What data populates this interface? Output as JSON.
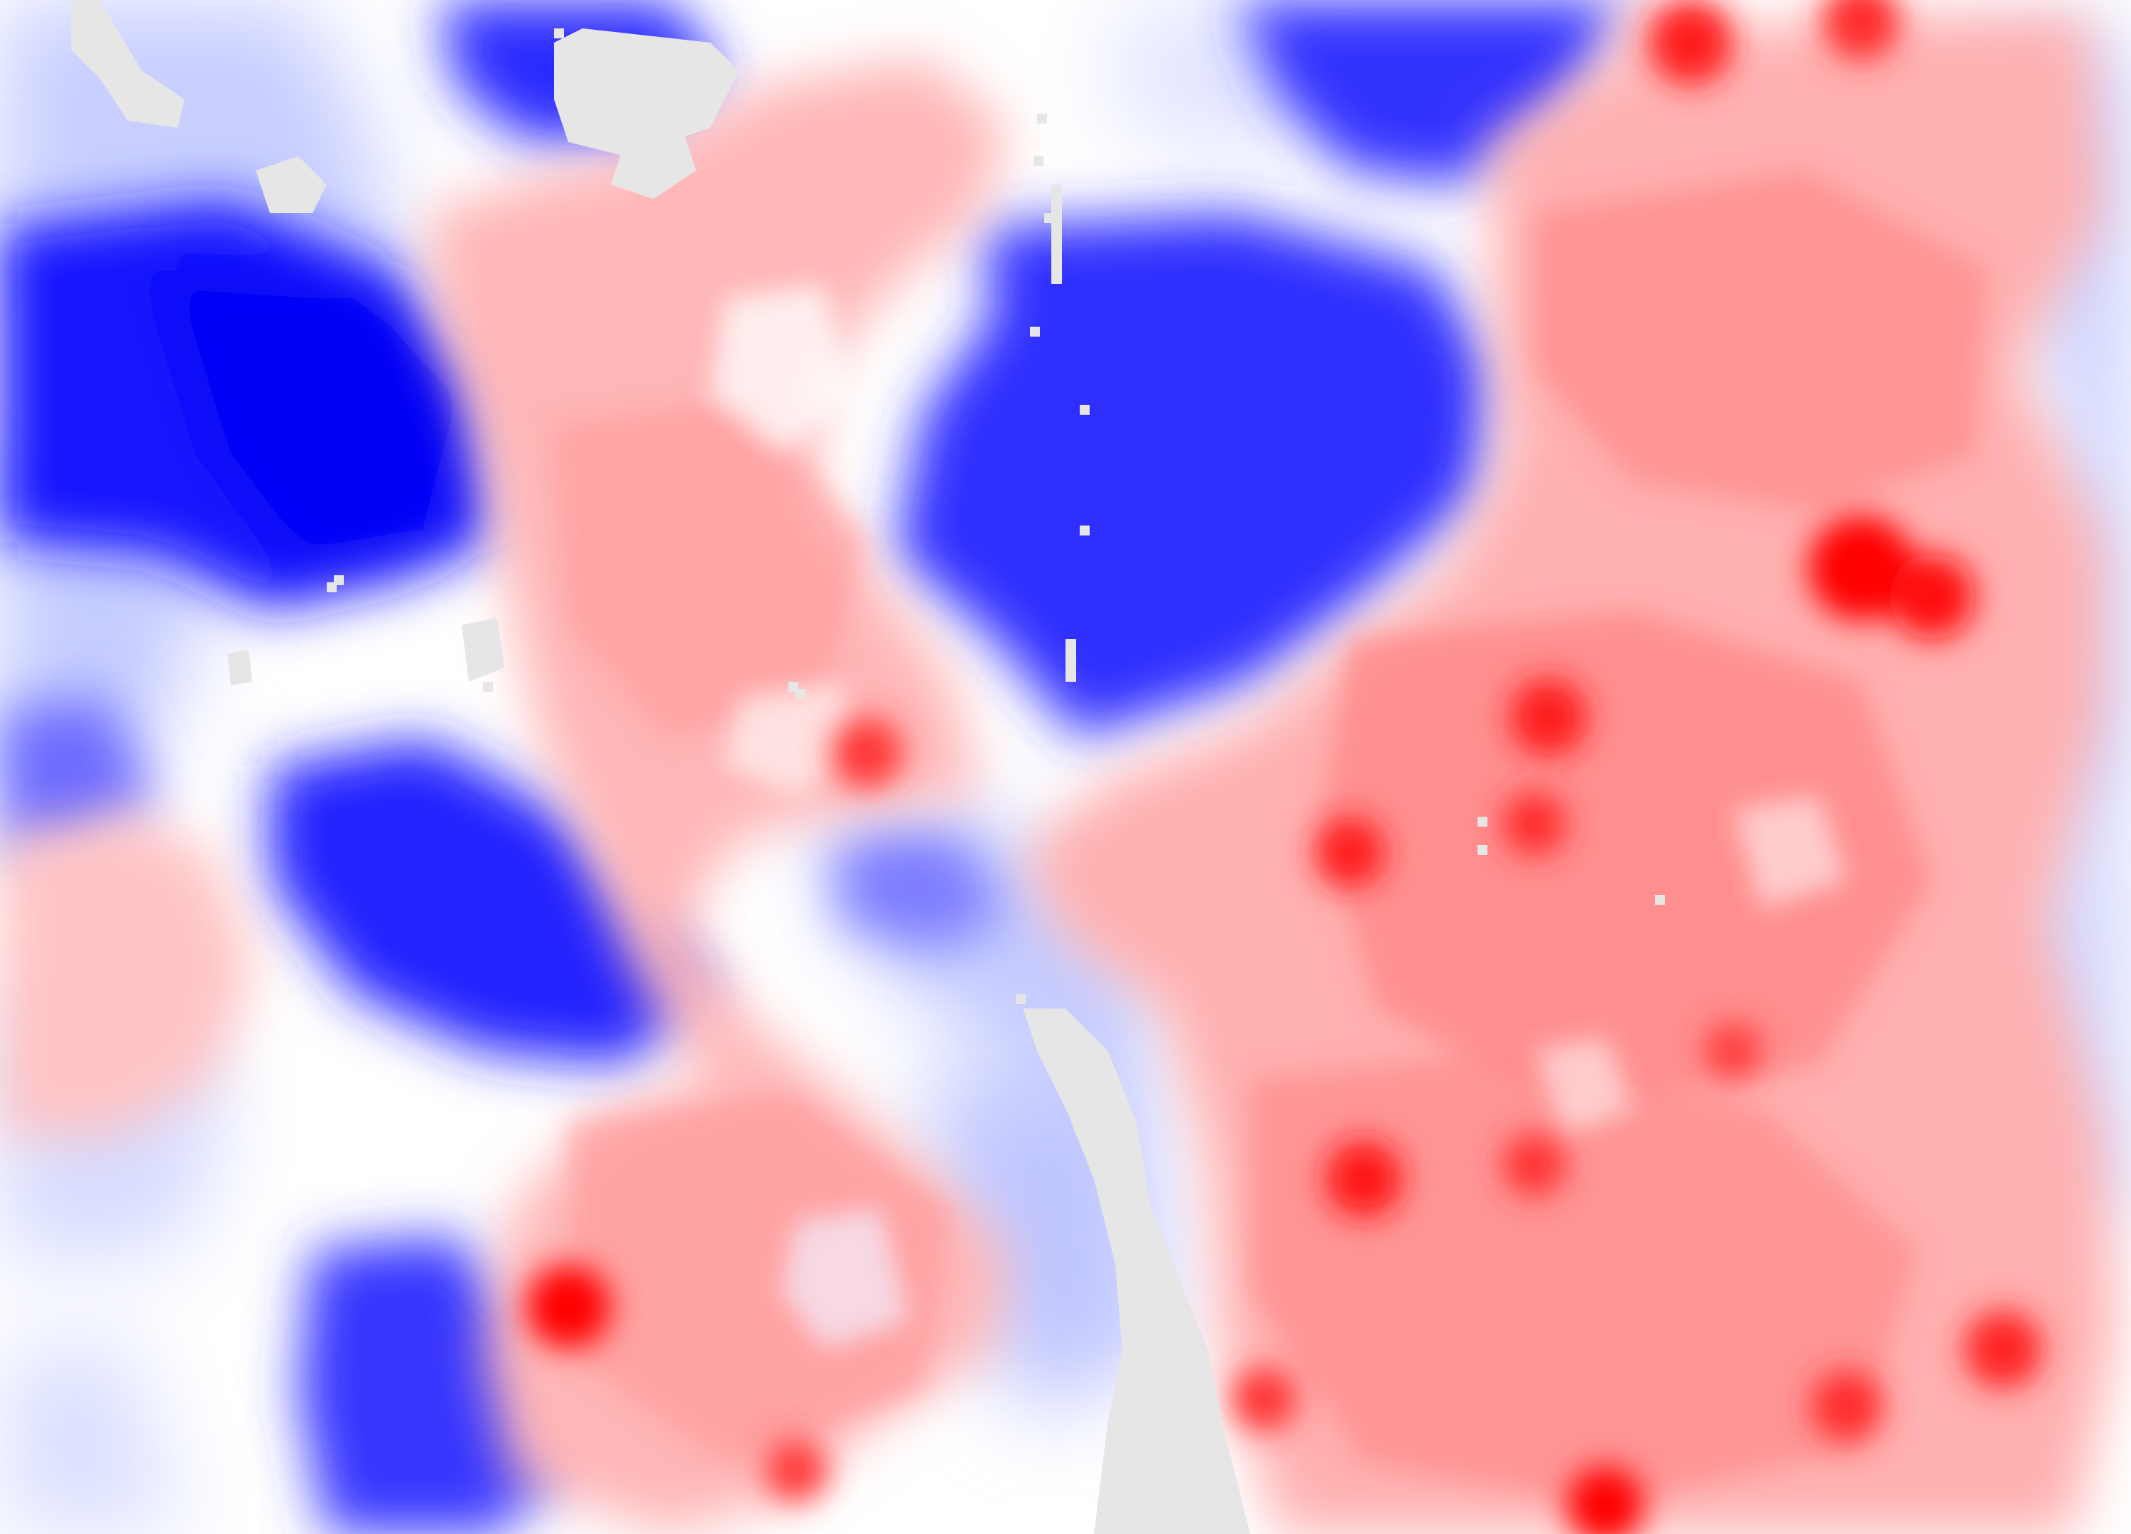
{
  "map": {
    "type": "diverging-heatmap",
    "palette": {
      "negative_strong": "#0000ff",
      "neutral": "#ffffff",
      "positive_strong": "#ff0000",
      "no_data": "#e6e6e6"
    },
    "legend": "none",
    "labels": "none"
  }
}
